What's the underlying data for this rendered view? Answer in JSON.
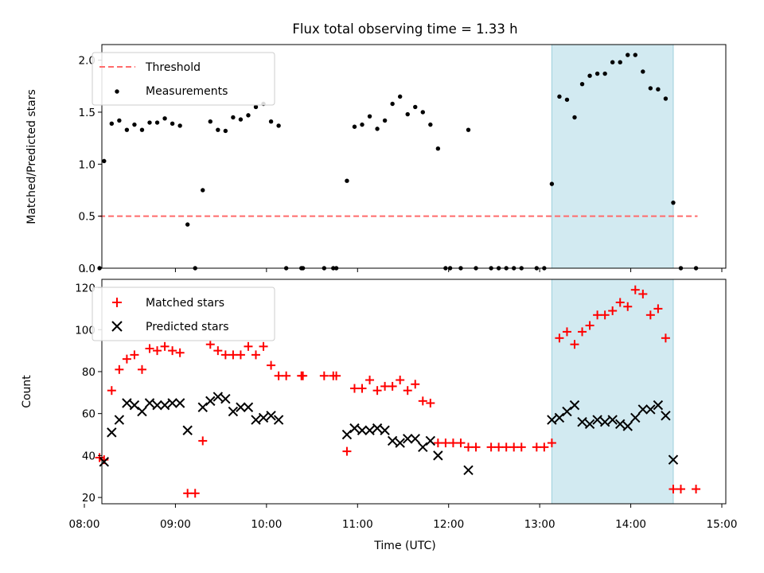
{
  "chart_data": [
    {
      "type": "scatter",
      "title": "Flux total observing time = 1.33 h",
      "xlabel": "",
      "ylabel": "Matched/Predicted stars",
      "xlim": [
        "08:00",
        "15:00"
      ],
      "ylim": [
        0,
        2.15
      ],
      "yticks": [
        "0.0",
        "0.5",
        "1.0",
        "1.5",
        "2.0"
      ],
      "grid": false,
      "legend_position": "upper-left",
      "highlight_span": {
        "start": "13:08",
        "end": "14:28",
        "color": "#add8e6"
      },
      "threshold": {
        "name": "Threshold",
        "value": 0.5,
        "start": "08:10",
        "end": "14:44",
        "color": "#ff6b6b",
        "style": "dashed"
      },
      "series": [
        {
          "name": "Measurements",
          "marker": "dot",
          "color": "#000000",
          "points": [
            [
              "08:10",
              0.0
            ],
            [
              "08:13",
              1.03
            ],
            [
              "08:18",
              1.39
            ],
            [
              "08:23",
              1.42
            ],
            [
              "08:28",
              1.33
            ],
            [
              "08:33",
              1.38
            ],
            [
              "08:38",
              1.33
            ],
            [
              "08:43",
              1.4
            ],
            [
              "08:48",
              1.4
            ],
            [
              "08:53",
              1.44
            ],
            [
              "08:58",
              1.39
            ],
            [
              "09:03",
              1.37
            ],
            [
              "09:08",
              0.42
            ],
            [
              "09:13",
              0.0
            ],
            [
              "09:18",
              0.75
            ],
            [
              "09:23",
              1.41
            ],
            [
              "09:28",
              1.33
            ],
            [
              "09:33",
              1.32
            ],
            [
              "09:38",
              1.45
            ],
            [
              "09:43",
              1.43
            ],
            [
              "09:48",
              1.47
            ],
            [
              "09:53",
              1.55
            ],
            [
              "09:58",
              1.58
            ],
            [
              "10:03",
              1.41
            ],
            [
              "10:08",
              1.37
            ],
            [
              "10:13",
              0.0
            ],
            [
              "10:23",
              0.0
            ],
            [
              "10:24",
              0.0
            ],
            [
              "10:38",
              0.0
            ],
            [
              "10:44",
              0.0
            ],
            [
              "10:46",
              0.0
            ],
            [
              "10:53",
              0.84
            ],
            [
              "10:58",
              1.36
            ],
            [
              "11:03",
              1.38
            ],
            [
              "11:08",
              1.46
            ],
            [
              "11:13",
              1.34
            ],
            [
              "11:18",
              1.42
            ],
            [
              "11:23",
              1.58
            ],
            [
              "11:28",
              1.65
            ],
            [
              "11:33",
              1.48
            ],
            [
              "11:38",
              1.55
            ],
            [
              "11:43",
              1.5
            ],
            [
              "11:48",
              1.38
            ],
            [
              "11:53",
              1.15
            ],
            [
              "11:58",
              0.0
            ],
            [
              "12:01",
              0.0
            ],
            [
              "12:08",
              0.0
            ],
            [
              "12:13",
              1.33
            ],
            [
              "12:18",
              0.0
            ],
            [
              "12:28",
              0.0
            ],
            [
              "12:33",
              0.0
            ],
            [
              "12:38",
              0.0
            ],
            [
              "12:43",
              0.0
            ],
            [
              "12:48",
              0.0
            ],
            [
              "12:58",
              0.0
            ],
            [
              "13:03",
              0.0
            ],
            [
              "13:08",
              0.81
            ],
            [
              "13:13",
              1.65
            ],
            [
              "13:18",
              1.62
            ],
            [
              "13:23",
              1.45
            ],
            [
              "13:28",
              1.77
            ],
            [
              "13:33",
              1.85
            ],
            [
              "13:38",
              1.87
            ],
            [
              "13:43",
              1.87
            ],
            [
              "13:48",
              1.98
            ],
            [
              "13:53",
              1.98
            ],
            [
              "13:58",
              2.05
            ],
            [
              "14:03",
              2.05
            ],
            [
              "14:08",
              1.89
            ],
            [
              "14:13",
              1.73
            ],
            [
              "14:18",
              1.72
            ],
            [
              "14:23",
              1.63
            ],
            [
              "14:28",
              0.63
            ],
            [
              "14:33",
              0.0
            ],
            [
              "14:43",
              0.0
            ]
          ]
        }
      ]
    },
    {
      "type": "scatter",
      "title": "",
      "xlabel": "Time (UTC)",
      "ylabel": "Count",
      "xlim": [
        "08:00",
        "15:00"
      ],
      "ylim": [
        17,
        124
      ],
      "xticks": [
        "08:00",
        "09:00",
        "10:00",
        "11:00",
        "12:00",
        "13:00",
        "14:00",
        "15:00"
      ],
      "yticks": [
        "20",
        "40",
        "60",
        "80",
        "100",
        "120"
      ],
      "grid": false,
      "legend_position": "upper-left",
      "highlight_span": {
        "start": "13:08",
        "end": "14:28",
        "color": "#add8e6"
      },
      "series": [
        {
          "name": "Matched stars",
          "marker": "plus",
          "color": "#ff0000",
          "points": [
            [
              "08:10",
              39
            ],
            [
              "08:13",
              38
            ],
            [
              "08:18",
              71
            ],
            [
              "08:23",
              81
            ],
            [
              "08:28",
              86
            ],
            [
              "08:33",
              88
            ],
            [
              "08:38",
              81
            ],
            [
              "08:43",
              91
            ],
            [
              "08:48",
              90
            ],
            [
              "08:53",
              92
            ],
            [
              "08:58",
              90
            ],
            [
              "09:03",
              89
            ],
            [
              "09:08",
              22
            ],
            [
              "09:13",
              22
            ],
            [
              "09:18",
              47
            ],
            [
              "09:23",
              93
            ],
            [
              "09:28",
              90
            ],
            [
              "09:33",
              88
            ],
            [
              "09:38",
              88
            ],
            [
              "09:43",
              88
            ],
            [
              "09:48",
              92
            ],
            [
              "09:53",
              88
            ],
            [
              "09:58",
              92
            ],
            [
              "10:03",
              83
            ],
            [
              "10:08",
              78
            ],
            [
              "10:13",
              78
            ],
            [
              "10:23",
              78
            ],
            [
              "10:24",
              78
            ],
            [
              "10:38",
              78
            ],
            [
              "10:44",
              78
            ],
            [
              "10:46",
              78
            ],
            [
              "10:53",
              42
            ],
            [
              "10:58",
              72
            ],
            [
              "11:03",
              72
            ],
            [
              "11:08",
              76
            ],
            [
              "11:13",
              71
            ],
            [
              "11:18",
              73
            ],
            [
              "11:23",
              73
            ],
            [
              "11:28",
              76
            ],
            [
              "11:33",
              71
            ],
            [
              "11:38",
              74
            ],
            [
              "11:43",
              66
            ],
            [
              "11:48",
              65
            ],
            [
              "11:53",
              46
            ],
            [
              "11:58",
              46
            ],
            [
              "12:03",
              46
            ],
            [
              "12:08",
              46
            ],
            [
              "12:13",
              44
            ],
            [
              "12:18",
              44
            ],
            [
              "12:28",
              44
            ],
            [
              "12:33",
              44
            ],
            [
              "12:38",
              44
            ],
            [
              "12:43",
              44
            ],
            [
              "12:48",
              44
            ],
            [
              "12:58",
              44
            ],
            [
              "13:03",
              44
            ],
            [
              "13:08",
              46
            ],
            [
              "13:13",
              96
            ],
            [
              "13:18",
              99
            ],
            [
              "13:23",
              93
            ],
            [
              "13:28",
              99
            ],
            [
              "13:33",
              102
            ],
            [
              "13:38",
              107
            ],
            [
              "13:43",
              107
            ],
            [
              "13:48",
              109
            ],
            [
              "13:53",
              113
            ],
            [
              "13:58",
              111
            ],
            [
              "14:03",
              119
            ],
            [
              "14:08",
              117
            ],
            [
              "14:13",
              107
            ],
            [
              "14:18",
              110
            ],
            [
              "14:23",
              96
            ],
            [
              "14:28",
              24
            ],
            [
              "14:33",
              24
            ],
            [
              "14:43",
              24
            ]
          ]
        },
        {
          "name": "Predicted stars",
          "marker": "x",
          "color": "#000000",
          "points": [
            [
              "08:13",
              37
            ],
            [
              "08:18",
              51
            ],
            [
              "08:23",
              57
            ],
            [
              "08:28",
              65
            ],
            [
              "08:33",
              64
            ],
            [
              "08:38",
              61
            ],
            [
              "08:43",
              65
            ],
            [
              "08:48",
              64
            ],
            [
              "08:53",
              64
            ],
            [
              "08:58",
              65
            ],
            [
              "09:03",
              65
            ],
            [
              "09:08",
              52
            ],
            [
              "09:18",
              63
            ],
            [
              "09:23",
              66
            ],
            [
              "09:28",
              68
            ],
            [
              "09:33",
              67
            ],
            [
              "09:38",
              61
            ],
            [
              "09:43",
              63
            ],
            [
              "09:48",
              63
            ],
            [
              "09:53",
              57
            ],
            [
              "09:58",
              58
            ],
            [
              "10:03",
              59
            ],
            [
              "10:08",
              57
            ],
            [
              "10:53",
              50
            ],
            [
              "10:58",
              53
            ],
            [
              "11:03",
              52
            ],
            [
              "11:08",
              52
            ],
            [
              "11:13",
              53
            ],
            [
              "11:18",
              52
            ],
            [
              "11:23",
              47
            ],
            [
              "11:28",
              46
            ],
            [
              "11:33",
              48
            ],
            [
              "11:38",
              48
            ],
            [
              "11:43",
              44
            ],
            [
              "11:48",
              47
            ],
            [
              "11:53",
              40
            ],
            [
              "12:13",
              33
            ],
            [
              "13:08",
              57
            ],
            [
              "13:13",
              58
            ],
            [
              "13:18",
              61
            ],
            [
              "13:23",
              64
            ],
            [
              "13:28",
              56
            ],
            [
              "13:33",
              55
            ],
            [
              "13:38",
              57
            ],
            [
              "13:43",
              56
            ],
            [
              "13:48",
              57
            ],
            [
              "13:53",
              55
            ],
            [
              "13:58",
              54
            ],
            [
              "14:03",
              58
            ],
            [
              "14:08",
              62
            ],
            [
              "14:13",
              62
            ],
            [
              "14:18",
              64
            ],
            [
              "14:23",
              59
            ],
            [
              "14:28",
              38
            ]
          ]
        }
      ]
    }
  ]
}
